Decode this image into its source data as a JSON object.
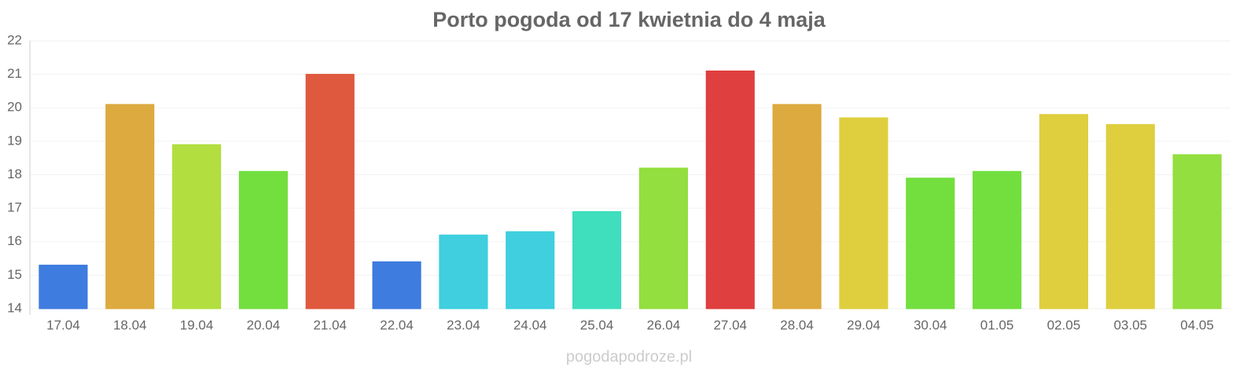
{
  "chart_data": {
    "type": "bar",
    "title": "Porto pogoda od 17 kwietnia do 4 maja",
    "source": "pogodapodroze.pl",
    "categories": [
      "17.04",
      "18.04",
      "19.04",
      "20.04",
      "21.04",
      "22.04",
      "23.04",
      "24.04",
      "25.04",
      "26.04",
      "27.04",
      "28.04",
      "29.04",
      "30.04",
      "01.05",
      "02.05",
      "03.05",
      "04.05"
    ],
    "values": [
      15.3,
      20.1,
      18.9,
      18.1,
      21.0,
      15.4,
      16.2,
      16.3,
      16.9,
      18.2,
      21.1,
      20.1,
      19.7,
      17.9,
      18.1,
      19.8,
      19.5,
      18.6
    ],
    "colors": [
      "#3575dd",
      "#dba535",
      "#aedd35",
      "#6bdd35",
      "#dd5035",
      "#3575dd",
      "#35ccdd",
      "#35ccdd",
      "#35ddbb",
      "#8ddd35",
      "#dd3535",
      "#dba535",
      "#ddcc35",
      "#6bdd35",
      "#6bdd35",
      "#ddcc35",
      "#ddcc35",
      "#8ddd35"
    ],
    "ylim": [
      14,
      22
    ],
    "yticks": [
      14,
      15,
      16,
      17,
      18,
      19,
      20,
      21,
      22
    ],
    "grid": true
  }
}
